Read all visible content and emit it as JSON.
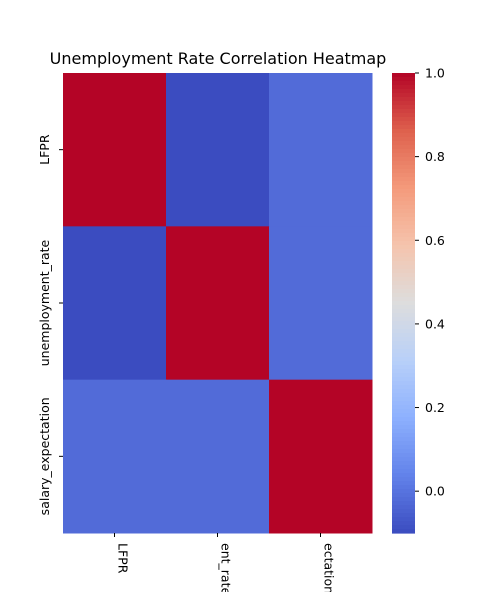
{
  "chart_data": {
    "type": "heatmap",
    "title": "Unemployment Rate Correlation Heatmap",
    "x_categories": [
      "LFPR",
      "unemployment_rate",
      "salary_expectation"
    ],
    "y_categories": [
      "LFPR",
      "unemployment_rate",
      "salary_expectation"
    ],
    "x_tick_labels_shown": [
      "LFPR",
      "ent_rate",
      "ectation"
    ],
    "values": [
      [
        1.0,
        -0.1,
        -0.02
      ],
      [
        -0.1,
        1.0,
        -0.02
      ],
      [
        -0.02,
        -0.02,
        1.0
      ]
    ],
    "colormap": "coolwarm",
    "vmin": -0.1,
    "vmax": 1.0,
    "colorbar_ticks": [
      "1.0",
      "0.8",
      "0.6",
      "0.4",
      "0.2",
      "0.0"
    ],
    "colorbar_tick_values": [
      1.0,
      0.8,
      0.6,
      0.4,
      0.2,
      0.0
    ]
  }
}
